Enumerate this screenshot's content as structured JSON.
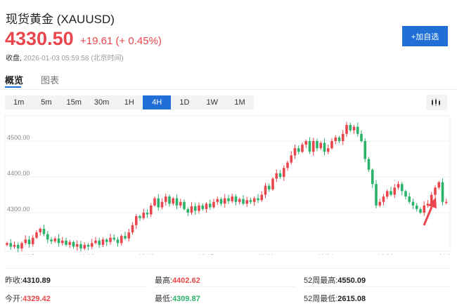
{
  "header": {
    "title": "现货黄金 (XAUUSD)",
    "price": "4330.50",
    "change": "+19.61 (+ 0.45%)",
    "close_label": "收盘,",
    "close_time": "2026-01-03 05:59:58 (北京时间)",
    "add_button": "+加自选"
  },
  "tabs": [
    {
      "label": "概览",
      "active": true
    },
    {
      "label": "图表",
      "active": false
    }
  ],
  "periods": [
    "1m",
    "5m",
    "15m",
    "30m",
    "1H",
    "4H",
    "1D",
    "1W",
    "1M"
  ],
  "active_period": "4H",
  "colors": {
    "up": "#e8464c",
    "down": "#2bb36a",
    "accent": "#1f6fd6"
  },
  "chart_data": {
    "type": "candlestick",
    "y_ticks": [
      "4500.00",
      "4400.00",
      "4300.00"
    ],
    "y_tick_values": [
      4500,
      4400,
      4300
    ],
    "ylim": [
      4180,
      4570
    ],
    "x_ticks": [
      "12/05",
      "12/09",
      "12/12",
      "12/17",
      "12/20",
      "12/24",
      "12/30",
      "01/0"
    ],
    "x_tick_index": [
      5.3,
      21.5,
      37.7,
      53.9,
      70.1,
      86.3,
      102.5,
      118.7
    ],
    "closes": [
      4215,
      4205,
      4210,
      4200,
      4215,
      4225,
      4212,
      4230,
      4245,
      4255,
      4240,
      4225,
      4220,
      4228,
      4215,
      4222,
      4210,
      4218,
      4205,
      4212,
      4200,
      4210,
      4205,
      4215,
      4222,
      4210,
      4225,
      4218,
      4230,
      4225,
      4215,
      4235,
      4228,
      4245,
      4265,
      4290,
      4285,
      4300,
      4295,
      4320,
      4340,
      4315,
      4330,
      4345,
      4325,
      4340,
      4320,
      4330,
      4310,
      4300,
      4318,
      4305,
      4320,
      4310,
      4325,
      4315,
      4330,
      4338,
      4325,
      4340,
      4332,
      4345,
      4330,
      4338,
      4325,
      4335,
      4330,
      4340,
      4335,
      4350,
      4375,
      4365,
      4395,
      4410,
      4400,
      4425,
      4440,
      4460,
      4480,
      4470,
      4490,
      4500,
      4470,
      4500,
      4480,
      4495,
      4470,
      4480,
      4500,
      4510,
      4500,
      4520,
      4545,
      4530,
      4540,
      4520,
      4500,
      4450,
      4420,
      4380,
      4320,
      4330,
      4345,
      4360,
      4350,
      4370,
      4380,
      4360,
      4345,
      4330,
      4320,
      4310,
      4300,
      4320,
      4325,
      4350,
      4370,
      4385,
      4330,
      4330
    ]
  },
  "stats": [
    {
      "label": "昨收:",
      "value": "4310.89",
      "color": "#222"
    },
    {
      "label": "最高:",
      "value": "4402.62",
      "color": "#e8464c"
    },
    {
      "label": "52周最高:",
      "value": "4550.09",
      "color": "#222"
    },
    {
      "label": "今开:",
      "value": "4329.42",
      "color": "#e8464c"
    },
    {
      "label": "最低:",
      "value": "4309.87",
      "color": "#2bb36a"
    },
    {
      "label": "52周最低:",
      "value": "2615.08",
      "color": "#222"
    }
  ]
}
